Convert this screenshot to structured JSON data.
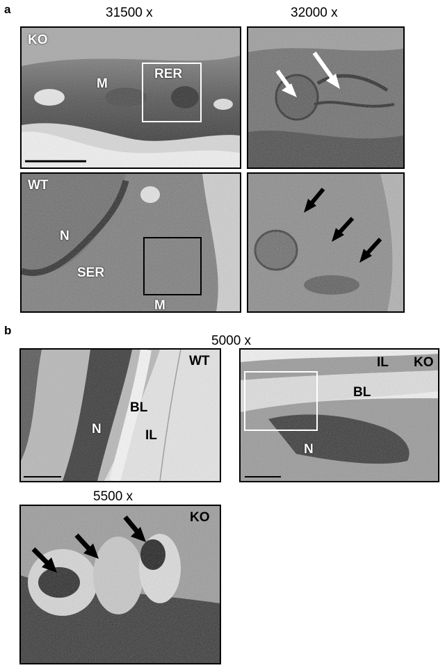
{
  "panel_a": {
    "letter": "a",
    "mag_left": "31500 x",
    "mag_right": "32000 x",
    "labels": {
      "ko": "KO",
      "m_top": "M",
      "rer": "RER",
      "wt": "WT",
      "n": "N",
      "ser": "SER",
      "m_bottom": "M"
    }
  },
  "panel_b": {
    "letter": "b",
    "mag_top": "5000 x",
    "mag_bottom": "5500 x",
    "labels": {
      "wt": "WT",
      "bl_left": "BL",
      "n_left": "N",
      "il_left": "IL",
      "il_right": "IL",
      "ko_right": "KO",
      "bl_right": "BL",
      "n_right": "N",
      "ko_bottom": "KO"
    }
  },
  "colors": {
    "em_light": "#c9c9c9",
    "em_mid": "#8a8a8a",
    "em_dark": "#3a3a3a",
    "arrow_white": "#ffffff",
    "arrow_black": "#000000"
  }
}
